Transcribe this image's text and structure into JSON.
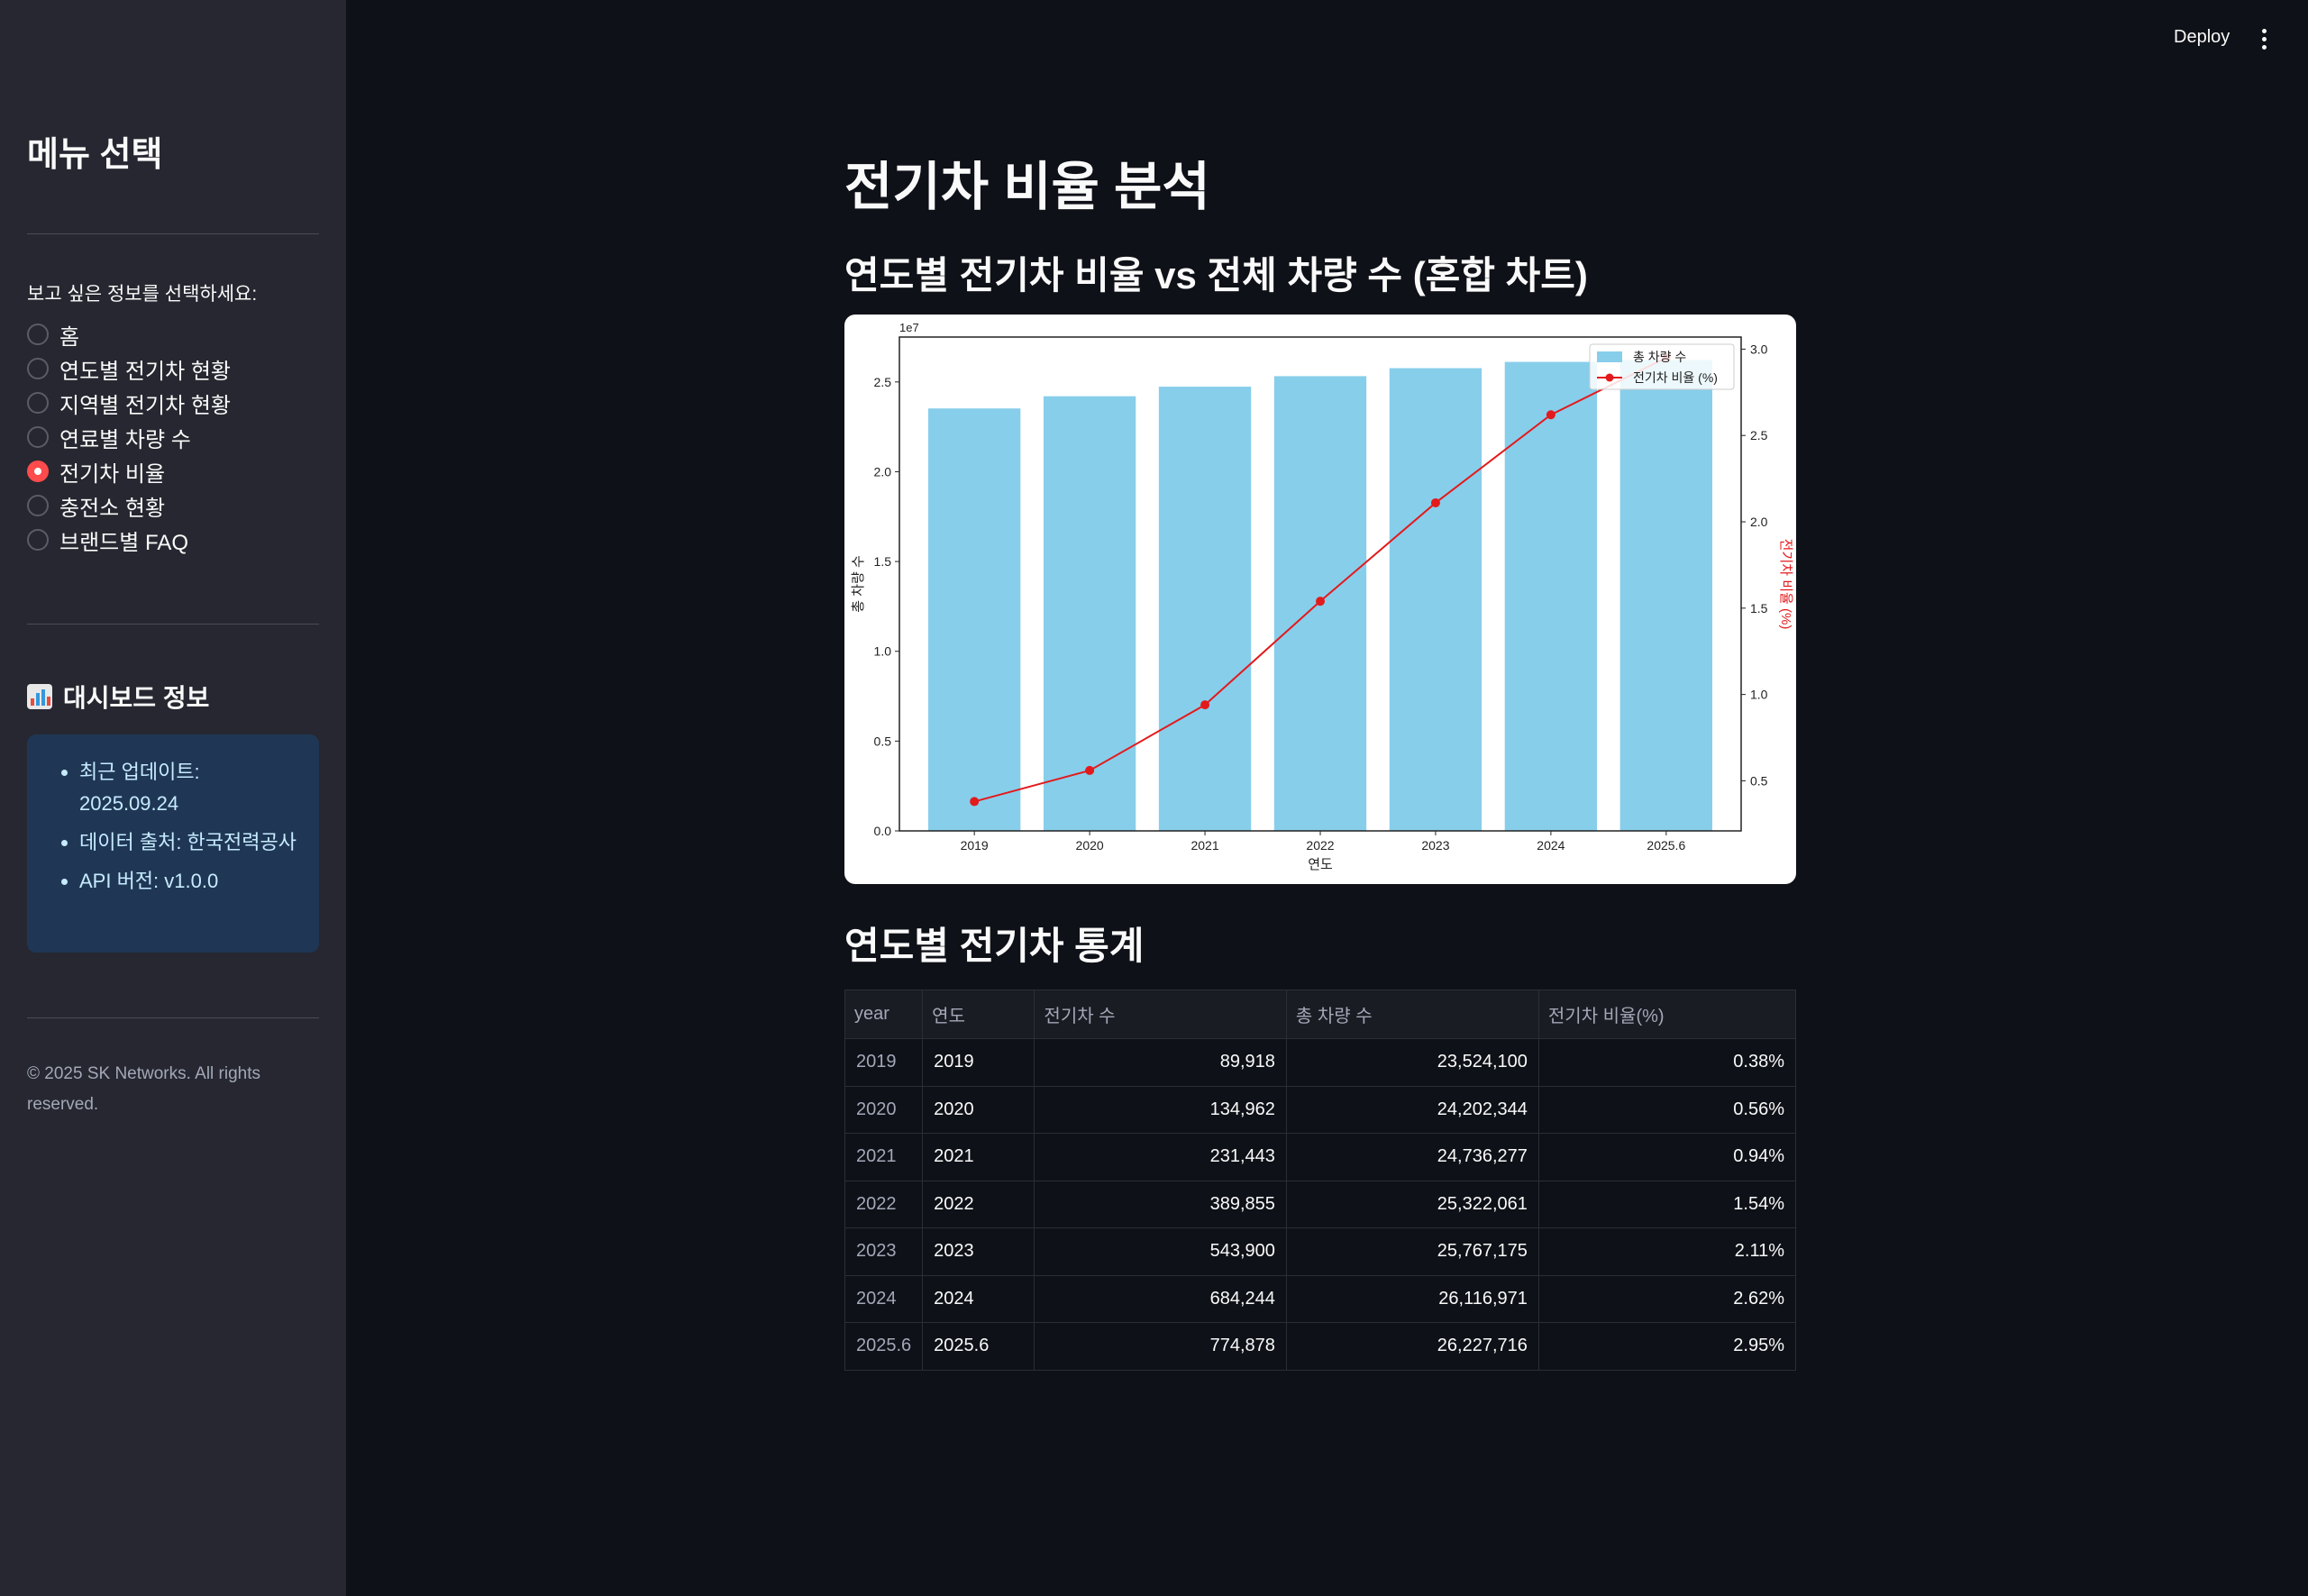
{
  "sidebar": {
    "title": "메뉴 선택",
    "radio_label": "보고 싶은 정보를 선택하세요:",
    "options": [
      {
        "label": "홈",
        "selected": false
      },
      {
        "label": "연도별 전기차 현황",
        "selected": false
      },
      {
        "label": "지역별 전기차 현황",
        "selected": false
      },
      {
        "label": "연료별 차량 수",
        "selected": false
      },
      {
        "label": "전기차 비율",
        "selected": true
      },
      {
        "label": "충전소 현황",
        "selected": false
      },
      {
        "label": "브랜드별 FAQ",
        "selected": false
      }
    ],
    "dashboard_title": "대시보드 정보",
    "dashboard_icon": "bar-chart-icon",
    "info": [
      "최근 업데이트: 2025.09.24",
      "데이터 출처: 한국전력공사",
      "API 버전: v1.0.0"
    ],
    "footer": "© 2025 SK Networks. All rights reserved."
  },
  "header": {
    "deploy_label": "Deploy",
    "menu_icon": "more-vertical-icon"
  },
  "main": {
    "title": "전기차 비율 분석",
    "chart_section_title": "연도별 전기차 비율 vs 전체 차량 수 (혼합 차트)",
    "table_section_title": "연도별 전기차 통계",
    "table": {
      "columns": [
        "year",
        "연도",
        "전기차 수",
        "총 차량 수",
        "전기차 비율(%)"
      ],
      "rows": [
        [
          "2019",
          "2019",
          "89,918",
          "23,524,100",
          "0.38%"
        ],
        [
          "2020",
          "2020",
          "134,962",
          "24,202,344",
          "0.56%"
        ],
        [
          "2021",
          "2021",
          "231,443",
          "24,736,277",
          "0.94%"
        ],
        [
          "2022",
          "2022",
          "389,855",
          "25,322,061",
          "1.54%"
        ],
        [
          "2023",
          "2023",
          "543,900",
          "25,767,175",
          "2.11%"
        ],
        [
          "2024",
          "2024",
          "684,244",
          "26,116,971",
          "2.62%"
        ],
        [
          "2025.6",
          "2025.6",
          "774,878",
          "26,227,716",
          "2.95%"
        ]
      ]
    }
  },
  "chart_data": {
    "type": "bar",
    "categories": [
      "2019",
      "2020",
      "2021",
      "2022",
      "2023",
      "2024",
      "2025.6"
    ],
    "xlabel": "연도",
    "ylabel": "총 차량 수",
    "ylabel_right": "전기차 비율 (%)",
    "y_offset_label": "1e7",
    "ylim": [
      0,
      2.75
    ],
    "ylim_right": [
      0.21,
      3.07
    ],
    "yticks": [
      "0.0",
      "0.5",
      "1.0",
      "1.5",
      "2.0",
      "2.5"
    ],
    "yticks_right": [
      "0.5",
      "1.0",
      "1.5",
      "2.0",
      "2.5",
      "3.0"
    ],
    "series": [
      {
        "name": "총 차량 수",
        "type": "bar",
        "axis": "left",
        "color": "#87ceeb",
        "values": [
          2.35241,
          2.4202344,
          2.4736277,
          2.5322061,
          2.5767175,
          2.6116971,
          2.6227716
        ]
      },
      {
        "name": "전기차 비율 (%)",
        "type": "line",
        "axis": "right",
        "color": "#e31a1c",
        "values": [
          0.38,
          0.56,
          0.94,
          1.54,
          2.11,
          2.62,
          2.95
        ]
      }
    ],
    "legend": "top-right",
    "grid": false
  },
  "colors": {
    "accent": "#ff4b4b",
    "info_bg": "#1f3755",
    "info_text": "#c7ebff"
  }
}
